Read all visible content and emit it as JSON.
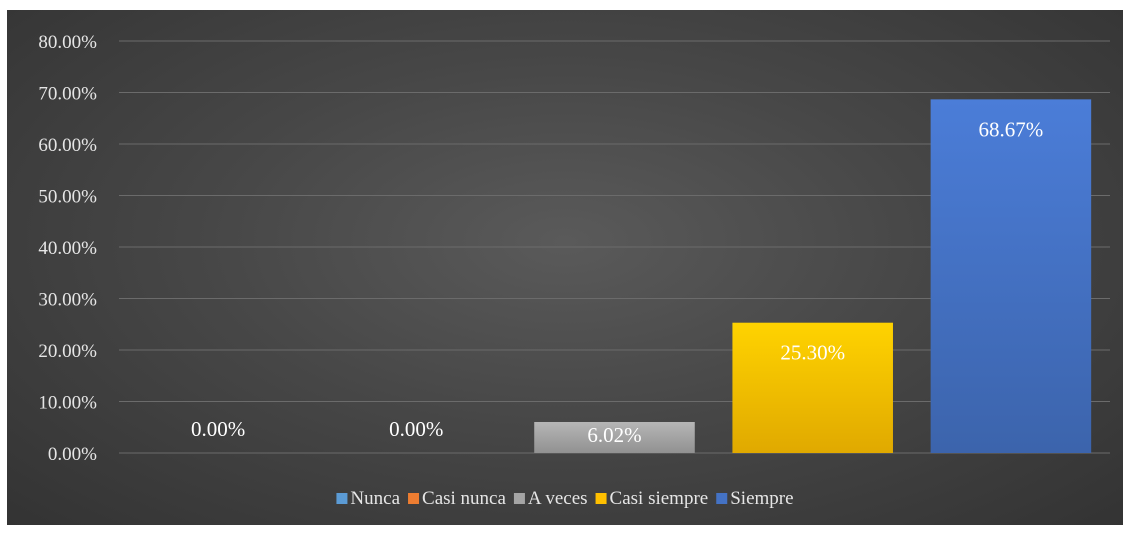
{
  "chart_data": {
    "type": "bar",
    "categories": [
      "Nunca",
      "Casi nunca",
      "A veces",
      "Casi siempre",
      "Siempre"
    ],
    "values": [
      0.0,
      0.0,
      6.02,
      25.3,
      68.67
    ],
    "data_labels": [
      "0.00%",
      "0.00%",
      "6.02%",
      "25.30%",
      "68.67%"
    ],
    "colors": [
      "#5b9bd5",
      "#ed7d31",
      "#a5a5a5",
      "#ffc000",
      "#4472c4"
    ],
    "ylim": [
      0,
      80
    ],
    "yticks": [
      0,
      10,
      20,
      30,
      40,
      50,
      60,
      70,
      80
    ],
    "ytick_labels": [
      "0.00%",
      "10.00%",
      "20.00%",
      "30.00%",
      "40.00%",
      "50.00%",
      "60.00%",
      "70.00%",
      "80.00%"
    ],
    "legend": [
      "Nunca",
      "Casi nunca",
      "A veces",
      "Casi siempre",
      "Siempre"
    ],
    "legend_position": "bottom",
    "grid": true,
    "title": "",
    "xlabel": "",
    "ylabel": ""
  }
}
